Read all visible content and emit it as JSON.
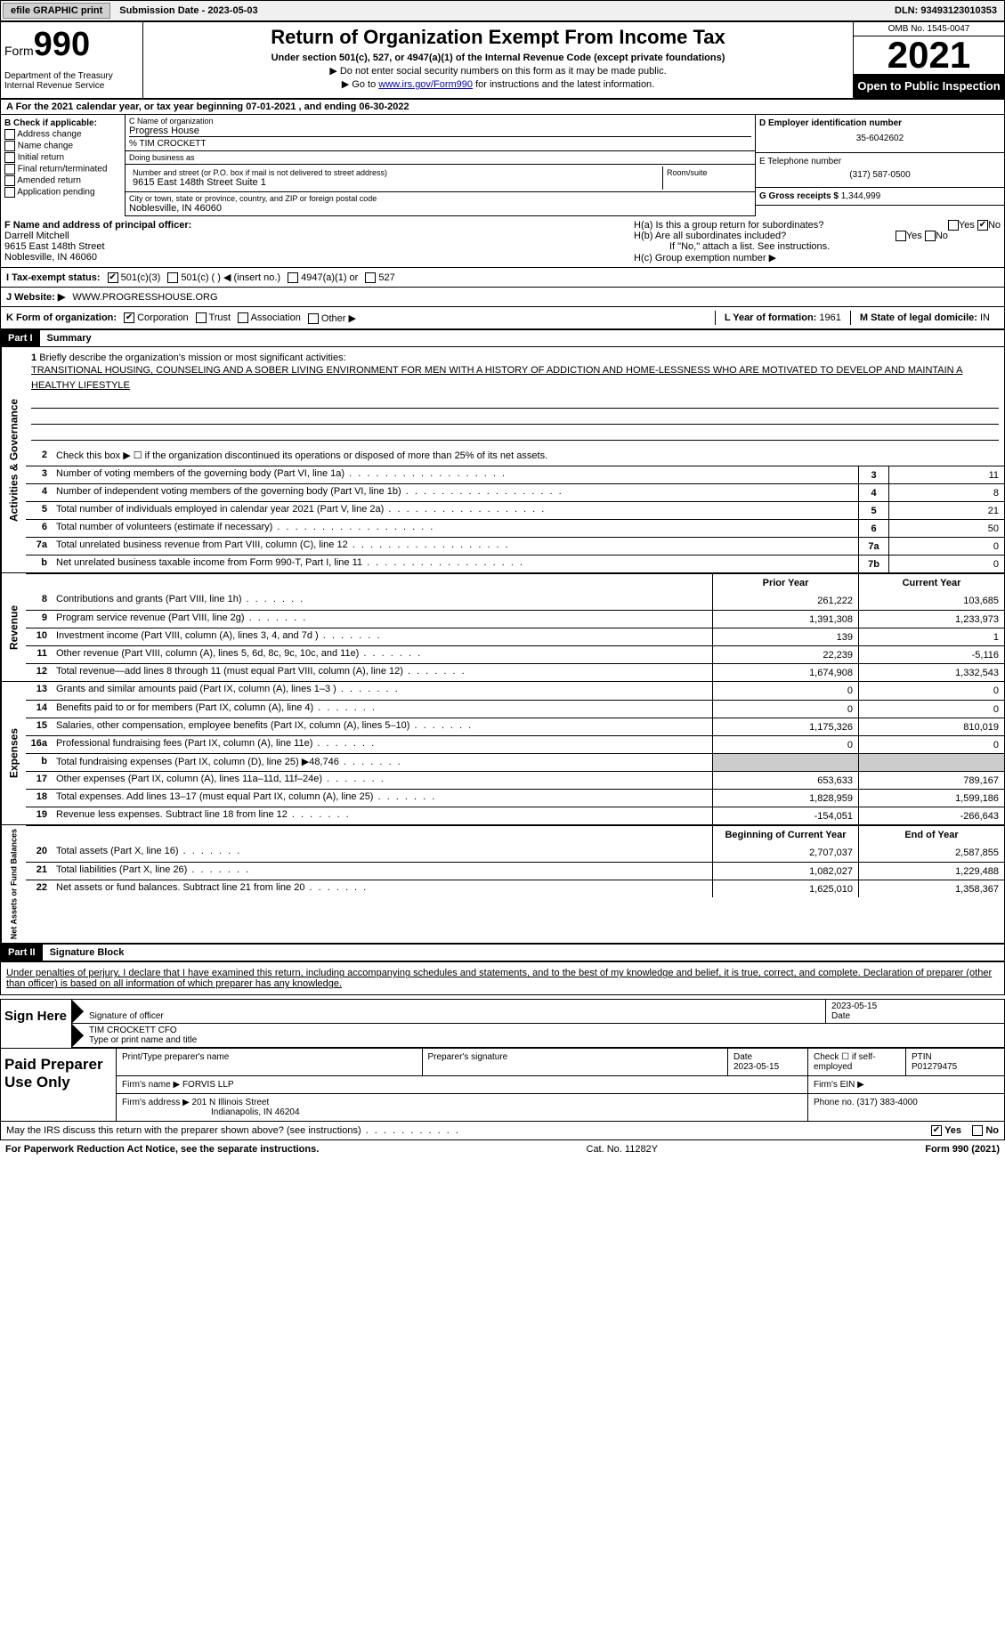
{
  "topbar": {
    "efile_btn": "efile GRAPHIC print",
    "submission_label": "Submission Date - 2023-05-03",
    "dln": "DLN: 93493123010353"
  },
  "header": {
    "form_label": "Form",
    "form_number": "990",
    "title": "Return of Organization Exempt From Income Tax",
    "subtitle": "Under section 501(c), 527, or 4947(a)(1) of the Internal Revenue Code (except private foundations)",
    "note1": "▶ Do not enter social security numbers on this form as it may be made public.",
    "note2_prefix": "▶ Go to ",
    "note2_link": "www.irs.gov/Form990",
    "note2_suffix": " for instructions and the latest information.",
    "dept": "Department of the Treasury\nInternal Revenue Service",
    "omb": "OMB No. 1545-0047",
    "year": "2021",
    "open": "Open to Public Inspection"
  },
  "period": "A For the 2021 calendar year, or tax year beginning 07-01-2021    , and ending 06-30-2022",
  "section_b": {
    "label": "B Check if applicable:",
    "opts": [
      "Address change",
      "Name change",
      "Initial return",
      "Final return/terminated",
      "Amended return",
      "Application pending"
    ]
  },
  "section_c": {
    "name_label": "C Name of organization",
    "name": "Progress House",
    "care_of": "% TIM CROCKETT",
    "dba_label": "Doing business as",
    "dba": "",
    "addr_label": "Number and street (or P.O. box if mail is not delivered to street address)",
    "addr": "9615 East 148th Street Suite 1",
    "room_label": "Room/suite",
    "city_label": "City or town, state or province, country, and ZIP or foreign postal code",
    "city": "Noblesville, IN  46060"
  },
  "section_d": {
    "ein_label": "D Employer identification number",
    "ein": "35-6042602",
    "phone_label": "E Telephone number",
    "phone": "(317) 587-0500",
    "gross_label": "G Gross receipts $",
    "gross": "1,344,999"
  },
  "section_f": {
    "label": "F Name and address of principal officer:",
    "name": "Darrell Mitchell",
    "addr1": "9615 East 148th Street",
    "addr2": "Noblesville, IN  46060"
  },
  "section_h": {
    "ha": "H(a)  Is this a group return for subordinates?",
    "hb": "H(b)  Are all subordinates included?",
    "hb_note": "If \"No,\" attach a list. See instructions.",
    "hc": "H(c)  Group exemption number ▶"
  },
  "tax_status": {
    "label": "I  Tax-exempt status:",
    "opt1": "501(c)(3)",
    "opt2": "501(c) (  ) ◀ (insert no.)",
    "opt3": "4947(a)(1) or",
    "opt4": "527"
  },
  "website": {
    "label": "J  Website: ▶",
    "url": "WWW.PROGRESSHOUSE.ORG"
  },
  "k_org": {
    "label": "K Form of organization:",
    "opts": [
      "Corporation",
      "Trust",
      "Association",
      "Other ▶"
    ],
    "year_label": "L Year of formation:",
    "year": "1961",
    "state_label": "M State of legal domicile:",
    "state": "IN"
  },
  "part1": {
    "header": "Part I",
    "title": "Summary"
  },
  "activities_label": "Activities & Governance",
  "revenue_label": "Revenue",
  "expenses_label": "Expenses",
  "netassets_label": "Net Assets or Fund Balances",
  "mission": {
    "num": "1",
    "label": "Briefly describe the organization's mission or most significant activities:",
    "text": "TRANSITIONAL HOUSING, COUNSELING AND A SOBER LIVING ENVIRONMENT FOR MEN WITH A HISTORY OF ADDICTION AND HOME-LESSNESS WHO ARE MOTIVATED TO DEVELOP AND MAINTAIN A HEALTHY LIFESTYLE"
  },
  "lines_single": [
    {
      "num": "2",
      "desc": "Check this box ▶ ☐ if the organization discontinued its operations or disposed of more than 25% of its net assets."
    },
    {
      "num": "3",
      "desc": "Number of voting members of the governing body (Part VI, line 1a)",
      "box": "3",
      "val": "11"
    },
    {
      "num": "4",
      "desc": "Number of independent voting members of the governing body (Part VI, line 1b)",
      "box": "4",
      "val": "8"
    },
    {
      "num": "5",
      "desc": "Total number of individuals employed in calendar year 2021 (Part V, line 2a)",
      "box": "5",
      "val": "21"
    },
    {
      "num": "6",
      "desc": "Total number of volunteers (estimate if necessary)",
      "box": "6",
      "val": "50"
    },
    {
      "num": "7a",
      "desc": "Total unrelated business revenue from Part VIII, column (C), line 12",
      "box": "7a",
      "val": "0"
    },
    {
      "num": " b",
      "desc": "Net unrelated business taxable income from Form 990-T, Part I, line 11",
      "box": "7b",
      "val": "0"
    }
  ],
  "col_headers": {
    "prior": "Prior Year",
    "current": "Current Year"
  },
  "revenue_lines": [
    {
      "num": "8",
      "desc": "Contributions and grants (Part VIII, line 1h)",
      "prior": "261,222",
      "current": "103,685"
    },
    {
      "num": "9",
      "desc": "Program service revenue (Part VIII, line 2g)",
      "prior": "1,391,308",
      "current": "1,233,973"
    },
    {
      "num": "10",
      "desc": "Investment income (Part VIII, column (A), lines 3, 4, and 7d )",
      "prior": "139",
      "current": "1"
    },
    {
      "num": "11",
      "desc": "Other revenue (Part VIII, column (A), lines 5, 6d, 8c, 9c, 10c, and 11e)",
      "prior": "22,239",
      "current": "-5,116"
    },
    {
      "num": "12",
      "desc": "Total revenue—add lines 8 through 11 (must equal Part VIII, column (A), line 12)",
      "prior": "1,674,908",
      "current": "1,332,543"
    }
  ],
  "expense_lines": [
    {
      "num": "13",
      "desc": "Grants and similar amounts paid (Part IX, column (A), lines 1–3 )",
      "prior": "0",
      "current": "0"
    },
    {
      "num": "14",
      "desc": "Benefits paid to or for members (Part IX, column (A), line 4)",
      "prior": "0",
      "current": "0"
    },
    {
      "num": "15",
      "desc": "Salaries, other compensation, employee benefits (Part IX, column (A), lines 5–10)",
      "prior": "1,175,326",
      "current": "810,019"
    },
    {
      "num": "16a",
      "desc": "Professional fundraising fees (Part IX, column (A), line 11e)",
      "prior": "0",
      "current": "0"
    },
    {
      "num": "b",
      "desc": "Total fundraising expenses (Part IX, column (D), line 25) ▶48,746",
      "prior": "",
      "current": "",
      "shade": true
    },
    {
      "num": "17",
      "desc": "Other expenses (Part IX, column (A), lines 11a–11d, 11f–24e)",
      "prior": "653,633",
      "current": "789,167"
    },
    {
      "num": "18",
      "desc": "Total expenses. Add lines 13–17 (must equal Part IX, column (A), line 25)",
      "prior": "1,828,959",
      "current": "1,599,186"
    },
    {
      "num": "19",
      "desc": "Revenue less expenses. Subtract line 18 from line 12",
      "prior": "-154,051",
      "current": "-266,643"
    }
  ],
  "net_headers": {
    "begin": "Beginning of Current Year",
    "end": "End of Year"
  },
  "net_lines": [
    {
      "num": "20",
      "desc": "Total assets (Part X, line 16)",
      "prior": "2,707,037",
      "current": "2,587,855"
    },
    {
      "num": "21",
      "desc": "Total liabilities (Part X, line 26)",
      "prior": "1,082,027",
      "current": "1,229,488"
    },
    {
      "num": "22",
      "desc": "Net assets or fund balances. Subtract line 21 from line 20",
      "prior": "1,625,010",
      "current": "1,358,367"
    }
  ],
  "part2": {
    "header": "Part II",
    "title": "Signature Block"
  },
  "penalty": "Under penalties of perjury, I declare that I have examined this return, including accompanying schedules and statements, and to the best of my knowledge and belief, it is true, correct, and complete. Declaration of preparer (other than officer) is based on all information of which preparer has any knowledge.",
  "sign": {
    "here": "Sign Here",
    "sig_label": "Signature of officer",
    "date_label": "Date",
    "date": "2023-05-15",
    "name": "TIM CROCKETT CFO",
    "name_label": "Type or print name and title"
  },
  "paid": {
    "label": "Paid Preparer Use Only",
    "print_label": "Print/Type preparer's name",
    "sig_label": "Preparer's signature",
    "date_label": "Date",
    "date": "2023-05-15",
    "check_label": "Check ☐ if self-employed",
    "ptin_label": "PTIN",
    "ptin": "P01279475",
    "firm_name_label": "Firm's name    ▶",
    "firm_name": "FORVIS LLP",
    "firm_ein_label": "Firm's EIN ▶",
    "firm_addr_label": "Firm's address ▶",
    "firm_addr": "201 N Illinois Street",
    "firm_city": "Indianapolis, IN  46204",
    "phone_label": "Phone no.",
    "phone": "(317) 383-4000"
  },
  "discuss": {
    "text": "May the IRS discuss this return with the preparer shown above? (see instructions)",
    "yes": "Yes",
    "no": "No"
  },
  "footer": {
    "left": "For Paperwork Reduction Act Notice, see the separate instructions.",
    "mid": "Cat. No. 11282Y",
    "right": "Form 990 (2021)"
  }
}
